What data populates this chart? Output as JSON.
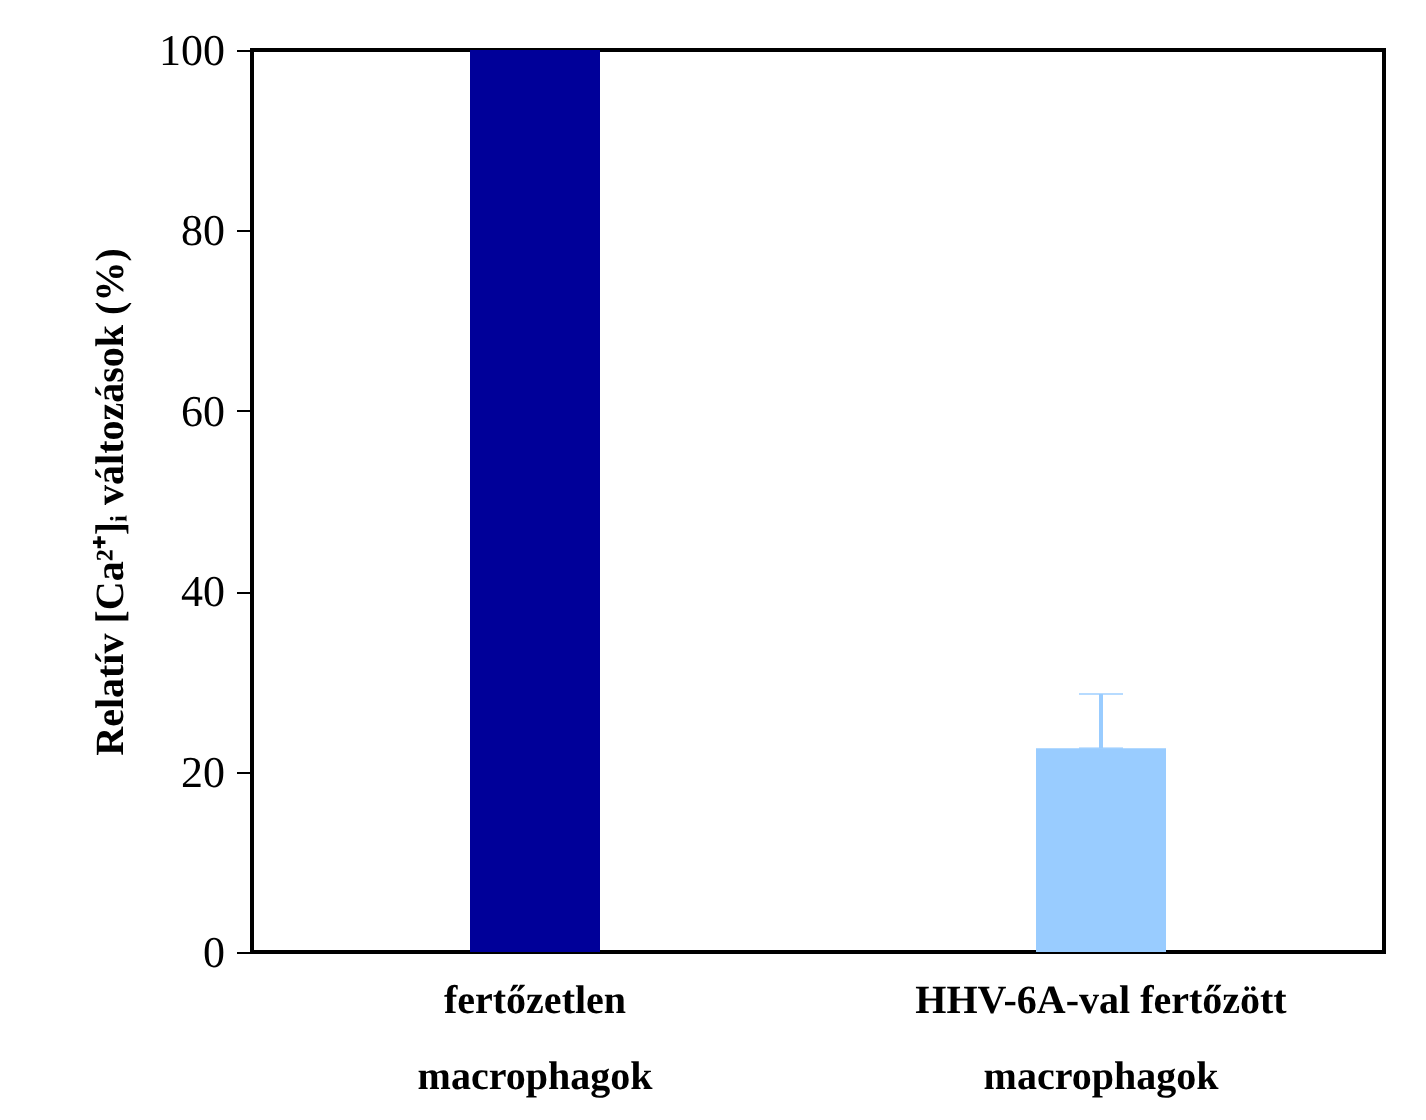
{
  "chart_data": {
    "type": "bar",
    "categories": [
      "fertőzetlen\nmacrophagok",
      "HHV-6A-val fertőzött\nmacrophagok"
    ],
    "values": [
      100,
      22.6
    ],
    "colors": [
      "#000099",
      "#99ccff"
    ],
    "errors": [
      null,
      6
    ],
    "ylabel": "Relatív [Ca²⁺]ᵢ változások (%)",
    "ylim": [
      0,
      100
    ],
    "yticks": [
      0,
      20,
      40,
      60,
      80,
      100
    ]
  }
}
